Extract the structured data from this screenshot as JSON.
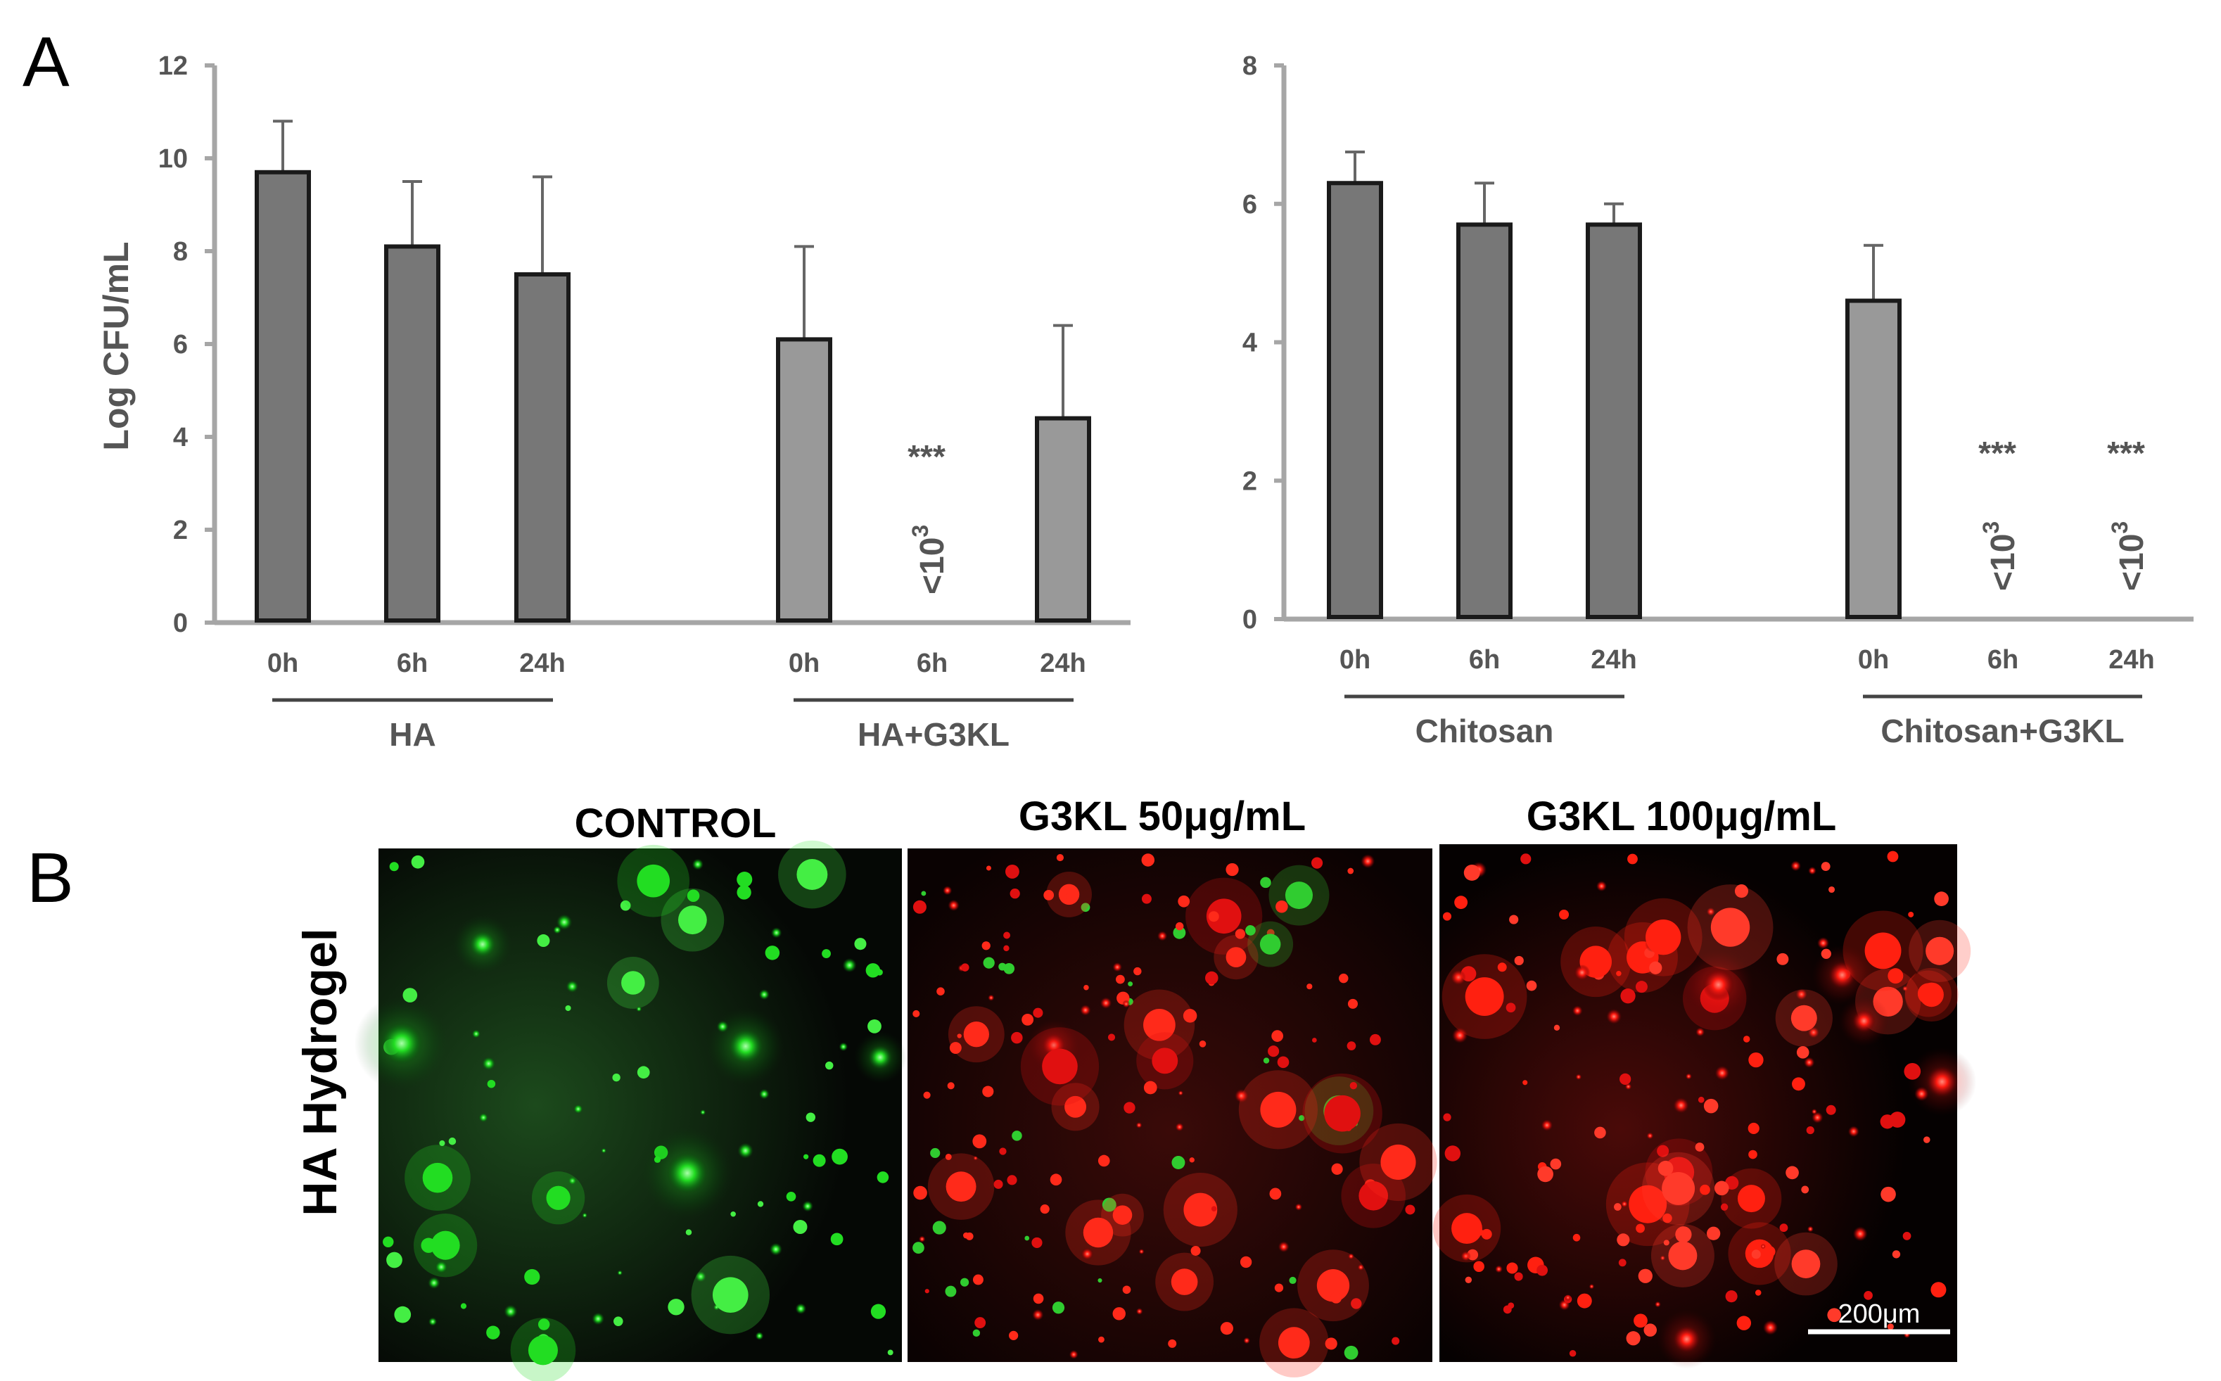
{
  "panel_labels": {
    "a": "A",
    "b": "B"
  },
  "chart_data": [
    {
      "type": "bar",
      "ylabel": "Log CFU/mL",
      "ylim": [
        0,
        12
      ],
      "yticks": [
        0,
        2,
        4,
        6,
        8,
        10,
        12
      ],
      "categories": [
        "0h",
        "6h",
        "24h",
        "0h",
        "6h",
        "24h"
      ],
      "groups": [
        {
          "name": "HA",
          "series_index": [
            0,
            1,
            2
          ]
        },
        {
          "name": "HA+G3KL",
          "series_index": [
            3,
            4,
            5
          ]
        }
      ],
      "values": [
        9.7,
        8.1,
        7.5,
        6.1,
        null,
        4.4
      ],
      "errors": [
        1.1,
        1.4,
        2.1,
        2.0,
        null,
        2.0
      ],
      "bar_colors": [
        "#777777",
        "#777777",
        "#777777",
        "#999999",
        "#999999",
        "#999999"
      ],
      "annotations": [
        {
          "index": 4,
          "stars": "***",
          "below_label": "<10",
          "below_sup": "3"
        }
      ]
    },
    {
      "type": "bar",
      "ylabel": "",
      "ylim": [
        0,
        8
      ],
      "yticks": [
        0,
        2,
        4,
        6,
        8
      ],
      "categories": [
        "0h",
        "6h",
        "24h",
        "0h",
        "6h",
        "24h"
      ],
      "groups": [
        {
          "name": "Chitosan",
          "series_index": [
            0,
            1,
            2
          ]
        },
        {
          "name": "Chitosan+G3KL",
          "series_index": [
            3,
            4,
            5
          ]
        }
      ],
      "values": [
        6.3,
        5.7,
        5.7,
        4.6,
        null,
        null
      ],
      "errors": [
        0.45,
        0.6,
        0.3,
        0.8,
        null,
        null
      ],
      "bar_colors": [
        "#777777",
        "#777777",
        "#777777",
        "#999999",
        "#999999",
        "#999999"
      ],
      "annotations": [
        {
          "index": 4,
          "stars": "***",
          "below_label": "<10",
          "below_sup": "3"
        },
        {
          "index": 5,
          "stars": "***",
          "below_label": "<10",
          "below_sup": "3"
        }
      ]
    }
  ],
  "micrographs": {
    "row_label": "HA Hydrogel",
    "panels": [
      {
        "title": "CONTROL",
        "stain": "green"
      },
      {
        "title": "G3KL 50μg/mL",
        "stain": "mixed"
      },
      {
        "title": "G3KL 100μg/mL",
        "stain": "red"
      }
    ],
    "scale_bar": "200μm"
  }
}
